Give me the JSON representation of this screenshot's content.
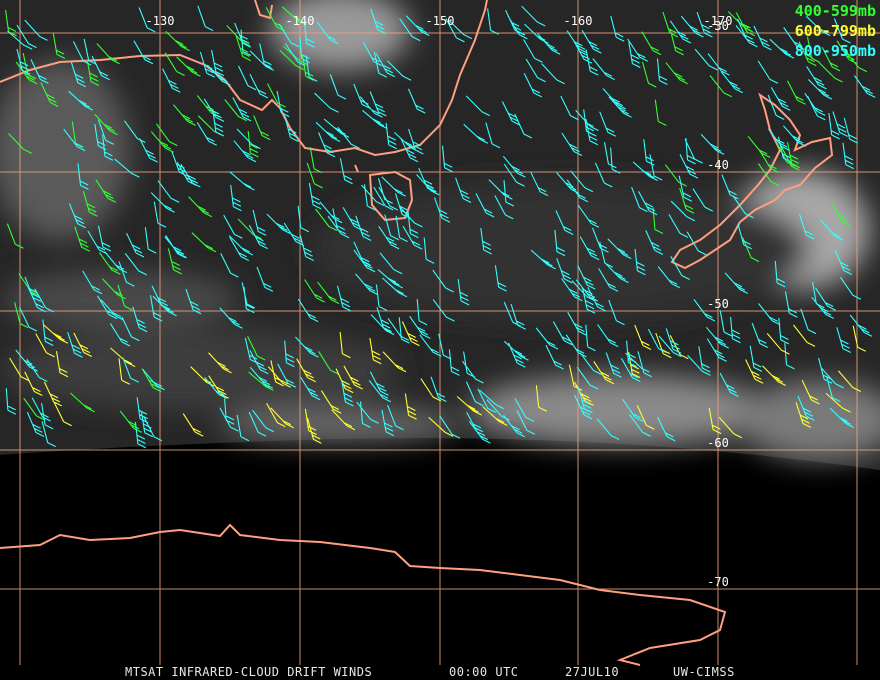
{
  "map": {
    "longitude_labels": [
      "-130",
      "-140",
      "-150",
      "-160",
      "-170"
    ],
    "latitude_labels": [
      "-30",
      "-40",
      "-50",
      "-60",
      "-70"
    ],
    "legend": [
      {
        "label": "400-599mb",
        "color": "#33ff33"
      },
      {
        "label": "600-799mb",
        "color": "#ffff33"
      },
      {
        "label": "800-950mb",
        "color": "#33ffff"
      }
    ],
    "footer": {
      "title": "MTSAT INFRARED-CLOUD DRIFT WINDS",
      "time": "00:00 UTC",
      "date": "27JUL10",
      "source": "UW-CIMSS"
    }
  }
}
